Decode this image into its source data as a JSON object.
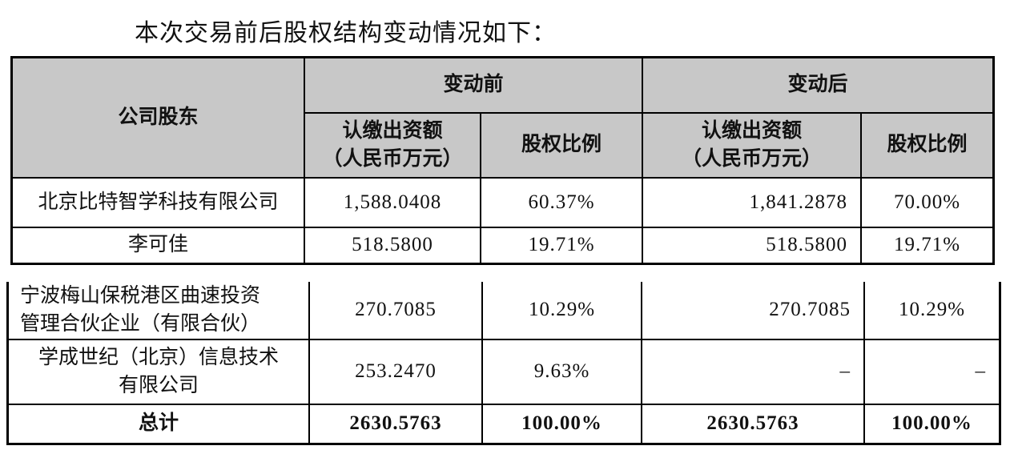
{
  "title": "本次交易前后股权结构变动情况如下：",
  "table": {
    "header": {
      "shareholder": "公司股东",
      "before": "变动前",
      "after": "变动后",
      "amount_line1": "认缴出资额",
      "amount_line2": "（人民币万元）",
      "ratio": "股权比例"
    },
    "rows": [
      {
        "name_lines": [
          "北京比特智学科技有限公司"
        ],
        "before_amount": "1,588.0408",
        "before_ratio": "60.37%",
        "after_amount": "1,841.2878",
        "after_ratio": "70.00%"
      },
      {
        "name_lines": [
          "李可佳"
        ],
        "before_amount": "518.5800",
        "before_ratio": "19.71%",
        "after_amount": "518.5800",
        "after_ratio": "19.71%"
      },
      {
        "name_lines": [
          "宁波梅山保税港区曲速投资",
          "管理合伙企业（有限合伙）"
        ],
        "before_amount": "270.7085",
        "before_ratio": "10.29%",
        "after_amount": "270.7085",
        "after_ratio": "10.29%"
      },
      {
        "name_lines": [
          "学成世纪（北京）信息技术",
          "有限公司"
        ],
        "before_amount": "253.2470",
        "before_ratio": "9.63%",
        "after_amount": "–",
        "after_ratio": "–"
      },
      {
        "name_lines": [
          "总计"
        ],
        "before_amount": "2630.5763",
        "before_ratio": "100.00%",
        "after_amount": "2630.5763",
        "after_ratio": "100.00%"
      }
    ],
    "colors": {
      "header_bg": "#c8c8c8",
      "border": "#000000"
    }
  }
}
